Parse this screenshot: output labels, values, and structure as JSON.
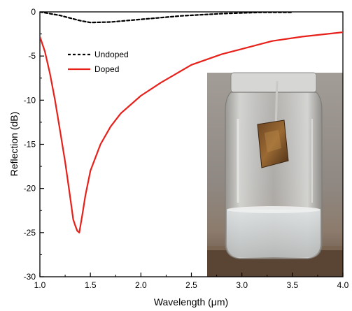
{
  "chart_data": {
    "type": "line",
    "title": "",
    "xlabel": "Wavelength (μm)",
    "ylabel": "Reflection (dB)",
    "xlim": [
      1.0,
      4.0
    ],
    "ylim": [
      -30,
      0
    ],
    "xticks": [
      "1.0",
      "1.5",
      "2.0",
      "2.5",
      "3.0",
      "3.5",
      "4.0"
    ],
    "yticks": [
      "0",
      "-5",
      "-10",
      "-15",
      "-20",
      "-25",
      "-30"
    ],
    "grid": false,
    "legend": "top-left",
    "series": [
      {
        "name": "Undoped",
        "color": "#000000",
        "style": "dashed",
        "x": [
          1.0,
          1.2,
          1.4,
          1.5,
          1.7,
          2.0,
          2.4,
          2.8,
          3.2,
          3.5
        ],
        "y": [
          0.0,
          -0.4,
          -1.0,
          -1.2,
          -1.15,
          -0.85,
          -0.45,
          -0.2,
          -0.05,
          -0.05
        ]
      },
      {
        "name": "Doped",
        "color": "#e8201a",
        "style": "solid",
        "x": [
          1.0,
          1.05,
          1.1,
          1.15,
          1.2,
          1.25,
          1.3,
          1.33,
          1.35,
          1.37,
          1.39,
          1.42,
          1.45,
          1.5,
          1.6,
          1.7,
          1.8,
          2.0,
          2.2,
          2.5,
          2.8,
          3.0,
          3.3,
          3.6,
          4.0
        ],
        "y": [
          -2.8,
          -4.5,
          -7.0,
          -10.0,
          -13.5,
          -17.0,
          -21.0,
          -23.5,
          -24.2,
          -24.8,
          -25.0,
          -23.0,
          -20.8,
          -18.0,
          -15.0,
          -13.0,
          -11.5,
          -9.5,
          -8.0,
          -6.0,
          -4.8,
          -4.2,
          -3.3,
          -2.8,
          -2.3
        ]
      }
    ]
  },
  "inset": {
    "image": "photo-jar-with-doped-film"
  }
}
